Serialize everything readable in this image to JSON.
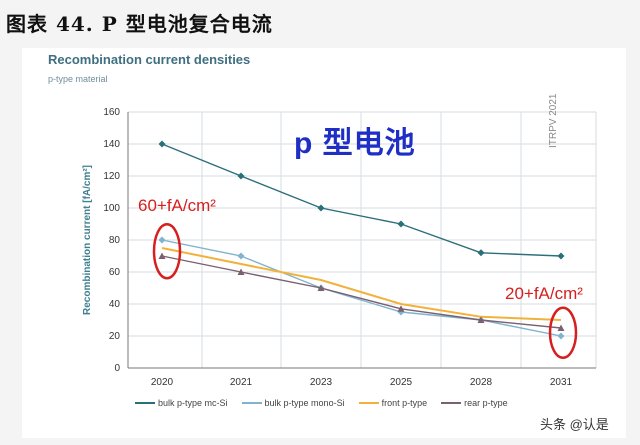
{
  "figure_title": "图表 44. P 型电池复合电流",
  "overlay_text": "p 型电池",
  "watermark": "ITRPV 2021",
  "annotations": [
    "60+fA/cm²",
    "20+fA/cm²"
  ],
  "credit": "头条 @认是",
  "colors": {
    "bulk_mc": "#2a6f7a",
    "bulk_mono": "#7fb3cf",
    "front": "#f2b13a",
    "rear": "#7a6070",
    "highlight": "#d71f1f"
  },
  "chart_data": {
    "type": "line",
    "title": "Recombination current densities",
    "subtitle": "p-type material",
    "ylabel": "Recombination current [fA/cm²]",
    "xlabel": "",
    "categories": [
      "2020",
      "2021",
      "2023",
      "2025",
      "2028",
      "2031"
    ],
    "yticks": [
      "0",
      "20",
      "40",
      "60",
      "80",
      "100",
      "120",
      "140",
      "160"
    ],
    "ylim": [
      0,
      160
    ],
    "grid": true,
    "legend_position": "bottom",
    "series": [
      {
        "name": "bulk p-type mc-Si",
        "marker": "diamond",
        "values": [
          140,
          120,
          100,
          90,
          72,
          70
        ]
      },
      {
        "name": "bulk p-type mono-Si",
        "marker": "diamond",
        "values": [
          80,
          70,
          50,
          35,
          30,
          20
        ]
      },
      {
        "name": "front p-type",
        "marker": "none",
        "values": [
          75,
          65,
          55,
          40,
          32,
          30
        ]
      },
      {
        "name": "rear p-type",
        "marker": "triangle",
        "values": [
          70,
          60,
          50,
          37,
          30,
          25
        ]
      }
    ]
  }
}
